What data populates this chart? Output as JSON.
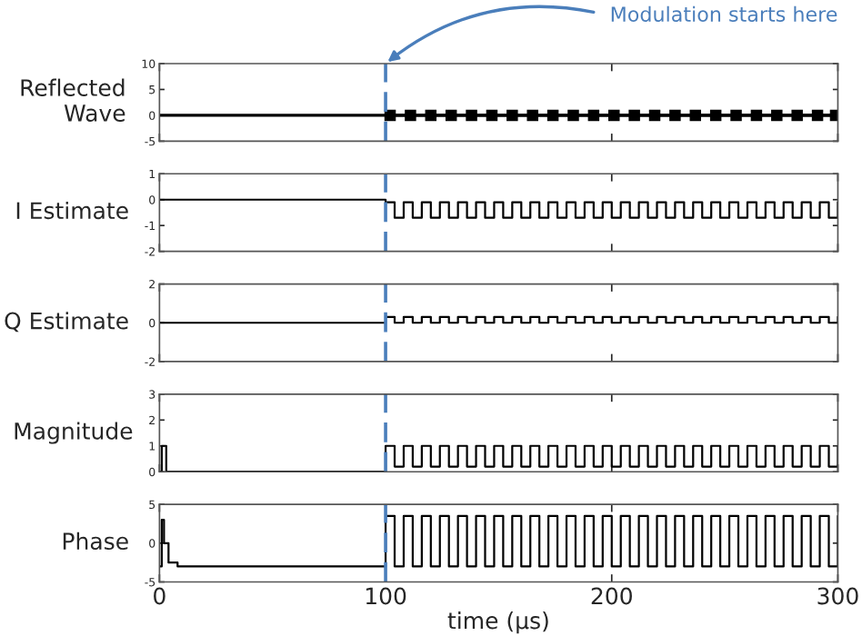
{
  "chart_data": [
    {
      "type": "line",
      "ylabel": "Reflected\nWave",
      "xlim": [
        0,
        300
      ],
      "ylim": [
        -5,
        10
      ],
      "yticks": [
        -5,
        0,
        5,
        10
      ],
      "tick_labels": "y",
      "annotations": [
        "Modulation starts here"
      ],
      "ref_lines": [
        {
          "axis": "x",
          "value": 100,
          "color": "#4a7ebb",
          "line_style": "dashed"
        }
      ],
      "series": [
        {
          "color": "#000000",
          "x": [
            0,
            100,
            300
          ],
          "values": [
            0,
            0,
            0
          ],
          "marker": "none"
        },
        {
          "color": "#000000",
          "x": [
            102,
            111,
            120,
            129,
            138,
            147,
            156,
            165,
            174,
            183,
            192,
            201,
            210,
            219,
            228,
            237,
            246,
            255,
            264,
            273,
            282,
            291,
            299
          ],
          "values": [
            0,
            0,
            0,
            0,
            0,
            0,
            0,
            0,
            0,
            0,
            0,
            0,
            0,
            0,
            0,
            0,
            0,
            0,
            0,
            0,
            0,
            0,
            0
          ],
          "marker": "square"
        }
      ]
    },
    {
      "type": "step",
      "ylabel": "I Estimate",
      "xlim": [
        0,
        300
      ],
      "ylim": [
        -2,
        1
      ],
      "yticks": [
        -2,
        -1,
        0,
        1
      ],
      "tick_labels": "y",
      "ref_lines": [
        {
          "axis": "x",
          "value": 100,
          "color": "#4a7ebb",
          "line_style": "dashed"
        }
      ],
      "series": [
        {
          "color": "#000000",
          "x": [
            0,
            100,
            104,
            108,
            112,
            116,
            120,
            124,
            128,
            132,
            136,
            140,
            144,
            148,
            152,
            156,
            160,
            164,
            168,
            172,
            176,
            180,
            184,
            188,
            192,
            196,
            200,
            204,
            208,
            212,
            216,
            220,
            224,
            228,
            232,
            236,
            240,
            244,
            248,
            252,
            256,
            260,
            264,
            268,
            272,
            276,
            280,
            284,
            288,
            292,
            296,
            300
          ],
          "values": [
            0,
            -0.1,
            -0.7,
            -0.1,
            -0.7,
            -0.1,
            -0.7,
            -0.1,
            -0.7,
            -0.1,
            -0.7,
            -0.1,
            -0.7,
            -0.1,
            -0.7,
            -0.1,
            -0.7,
            -0.1,
            -0.7,
            -0.1,
            -0.7,
            -0.1,
            -0.7,
            -0.1,
            -0.7,
            -0.1,
            -0.7,
            -0.1,
            -0.7,
            -0.1,
            -0.7,
            -0.1,
            -0.7,
            -0.1,
            -0.7,
            -0.1,
            -0.7,
            -0.1,
            -0.7,
            -0.1,
            -0.7,
            -0.1,
            -0.7,
            -0.1,
            -0.7,
            -0.1,
            -0.7,
            -0.1,
            -0.7,
            -0.1,
            -0.7,
            -0.1
          ]
        }
      ]
    },
    {
      "type": "step",
      "ylabel": "Q Estimate",
      "xlim": [
        0,
        300
      ],
      "ylim": [
        -2,
        2
      ],
      "yticks": [
        -2,
        0,
        2
      ],
      "tick_labels": "y",
      "ref_lines": [
        {
          "axis": "x",
          "value": 100,
          "color": "#4a7ebb",
          "line_style": "dashed"
        }
      ],
      "series": [
        {
          "color": "#000000",
          "x": [
            0,
            100,
            104,
            108,
            112,
            116,
            120,
            124,
            128,
            132,
            136,
            140,
            144,
            148,
            152,
            156,
            160,
            164,
            168,
            172,
            176,
            180,
            184,
            188,
            192,
            196,
            200,
            204,
            208,
            212,
            216,
            220,
            224,
            228,
            232,
            236,
            240,
            244,
            248,
            252,
            256,
            260,
            264,
            268,
            272,
            276,
            280,
            284,
            288,
            292,
            296,
            300
          ],
          "values": [
            0,
            0.3,
            0,
            0.3,
            0,
            0.3,
            0,
            0.3,
            0,
            0.3,
            0,
            0.3,
            0,
            0.3,
            0,
            0.3,
            0,
            0.3,
            0,
            0.3,
            0,
            0.3,
            0,
            0.3,
            0,
            0.3,
            0,
            0.3,
            0,
            0.3,
            0,
            0.3,
            0,
            0.3,
            0,
            0.3,
            0,
            0.3,
            0,
            0.3,
            0,
            0.3,
            0,
            0.3,
            0,
            0.3,
            0,
            0.3,
            0,
            0.3,
            0,
            0.3
          ]
        }
      ]
    },
    {
      "type": "step",
      "ylabel": "Magnitude",
      "xlim": [
        0,
        300
      ],
      "ylim": [
        0,
        3
      ],
      "yticks": [
        0,
        1,
        2,
        3
      ],
      "tick_labels": "y",
      "ref_lines": [
        {
          "axis": "x",
          "value": 100,
          "color": "#4a7ebb",
          "line_style": "dashed"
        }
      ],
      "series": [
        {
          "color": "#000000",
          "x": [
            0,
            1,
            3,
            100,
            104,
            108,
            112,
            116,
            120,
            124,
            128,
            132,
            136,
            140,
            144,
            148,
            152,
            156,
            160,
            164,
            168,
            172,
            176,
            180,
            184,
            188,
            192,
            196,
            200,
            204,
            208,
            212,
            216,
            220,
            224,
            228,
            232,
            236,
            240,
            244,
            248,
            252,
            256,
            260,
            264,
            268,
            272,
            276,
            280,
            284,
            288,
            292,
            296,
            300
          ],
          "values": [
            0,
            1,
            0,
            1,
            0.2,
            1,
            0.2,
            1,
            0.2,
            1,
            0.2,
            1,
            0.2,
            1,
            0.2,
            1,
            0.2,
            1,
            0.2,
            1,
            0.2,
            1,
            0.2,
            1,
            0.2,
            1,
            0.2,
            1,
            0.2,
            1,
            0.2,
            1,
            0.2,
            1,
            0.2,
            1,
            0.2,
            1,
            0.2,
            1,
            0.2,
            1,
            0.2,
            1,
            0.2,
            1,
            0.2,
            1,
            0.2,
            1,
            0.2,
            1,
            0.2,
            1
          ]
        }
      ]
    },
    {
      "type": "step",
      "ylabel": "Phase",
      "xlabel": "time (μs)",
      "xlim": [
        0,
        300
      ],
      "ylim": [
        -5,
        5
      ],
      "yticks": [
        -5,
        0,
        5
      ],
      "xticks": [
        0,
        100,
        200,
        300
      ],
      "ref_lines": [
        {
          "axis": "x",
          "value": 100,
          "color": "#4a7ebb",
          "line_style": "dashed"
        }
      ],
      "series": [
        {
          "color": "#000000",
          "x": [
            0,
            1,
            2,
            4,
            8,
            100,
            104,
            108,
            112,
            116,
            120,
            124,
            128,
            132,
            136,
            140,
            144,
            148,
            152,
            156,
            160,
            164,
            168,
            172,
            176,
            180,
            184,
            188,
            192,
            196,
            200,
            204,
            208,
            212,
            216,
            220,
            224,
            228,
            232,
            236,
            240,
            244,
            248,
            252,
            256,
            260,
            264,
            268,
            272,
            276,
            280,
            284,
            288,
            292,
            296,
            300
          ],
          "values": [
            -3,
            3,
            0,
            -2.5,
            -3,
            3.5,
            -3,
            3.5,
            -3,
            3.5,
            -3,
            3.5,
            -3,
            3.5,
            -3,
            3.5,
            -3,
            3.5,
            -3,
            3.5,
            -3,
            3.5,
            -3,
            3.5,
            -3,
            3.5,
            -3,
            3.5,
            -3,
            3.5,
            -3,
            3.5,
            -3,
            3.5,
            -3,
            3.5,
            -3,
            3.5,
            -3,
            3.5,
            -3,
            3.5,
            -3,
            3.5,
            -3,
            3.5,
            -3,
            3.5,
            -3,
            3.5,
            -3,
            3.5,
            -3,
            3.5,
            -3,
            3.5
          ]
        }
      ]
    }
  ]
}
